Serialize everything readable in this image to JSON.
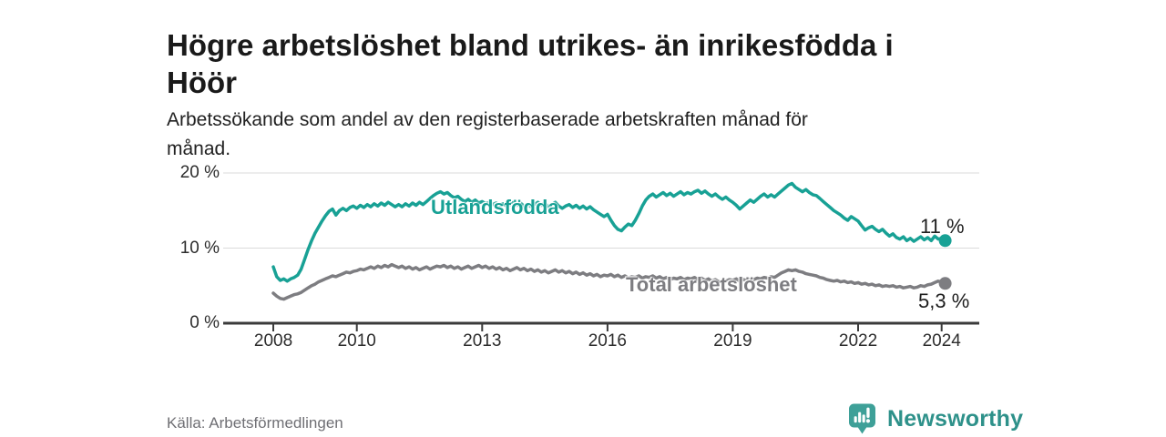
{
  "header": {
    "title_lines": [
      "Högre arbetslöshet bland utrikes- än inrikesfödda i",
      "Höör"
    ],
    "subtitle_lines": [
      "Arbetssökande som andel av den registerbaserade arbetskraften månad för",
      "månad."
    ]
  },
  "footer": {
    "source": "Källa: Arbetsförmedlingen",
    "brand_name": "Newsworthy",
    "brand_icon": "newsworthy-speech-bubble-bar-chart-icon"
  },
  "colors": {
    "accent_teal": "#18a195",
    "series_gray": "#7d7d81",
    "grid": "#dbdbdb",
    "axis": "#3b3b3b",
    "tick_text": "#2d2d2d",
    "title_text": "#1a1a1a",
    "muted_text": "#6f6f74",
    "brand_text": "#2e918a",
    "brand_icon_fill": "#3ea098"
  },
  "chart_data": {
    "type": "line",
    "title": "Högre arbetslöshet bland utrikes- än inrikesfödda i Höör",
    "subtitle": "Arbetssökande som andel av den registerbaserade arbetskraften månad för månad.",
    "xlabel": "",
    "ylabel": "",
    "x_unit": "year (monthly resolution)",
    "x_start": 2008.0,
    "x_step_years": 0.0833333,
    "xlim": [
      2006.8,
      2024.9
    ],
    "ylim": [
      0,
      20
    ],
    "grid": "horizontal",
    "legend_position": "inline-labels",
    "y_ticks": [
      {
        "value": 0,
        "label": "0 %"
      },
      {
        "value": 10,
        "label": "10 %"
      },
      {
        "value": 20,
        "label": "20 %"
      }
    ],
    "x_ticks": [
      {
        "value": 2008,
        "label": "2008"
      },
      {
        "value": 2010,
        "label": "2010"
      },
      {
        "value": 2013,
        "label": "2013"
      },
      {
        "value": 2016,
        "label": "2016"
      },
      {
        "value": 2019,
        "label": "2019"
      },
      {
        "value": 2022,
        "label": "2022"
      },
      {
        "value": 2024,
        "label": "2024"
      }
    ],
    "series": [
      {
        "name": "Utlandsfödda",
        "color": "#18a195",
        "end_label": "11 %",
        "end_value": 11.0,
        "values": [
          7.5,
          6.2,
          5.7,
          5.9,
          5.6,
          5.9,
          6.1,
          6.4,
          7.2,
          8.5,
          9.8,
          11.0,
          12.0,
          12.8,
          13.6,
          14.3,
          14.9,
          15.2,
          14.4,
          15.0,
          15.3,
          15.0,
          15.4,
          15.6,
          15.3,
          15.7,
          15.4,
          15.8,
          15.5,
          15.9,
          15.6,
          16.0,
          15.7,
          16.1,
          15.8,
          15.5,
          15.8,
          15.5,
          15.9,
          15.6,
          16.0,
          15.7,
          16.1,
          15.8,
          16.2,
          16.6,
          17.0,
          17.3,
          17.5,
          17.2,
          17.4,
          17.0,
          16.7,
          16.9,
          16.5,
          16.2,
          16.5,
          16.1,
          16.4,
          16.0,
          16.2,
          15.9,
          16.1,
          15.8,
          16.0,
          15.7,
          15.9,
          15.6,
          15.8,
          16.1,
          15.7,
          16.0,
          15.6,
          15.9,
          15.5,
          15.8,
          16.1,
          15.7,
          16.0,
          15.5,
          15.8,
          16.1,
          15.6,
          15.3,
          15.6,
          15.8,
          15.4,
          15.7,
          15.3,
          15.6,
          15.2,
          15.5,
          15.1,
          14.8,
          14.5,
          14.2,
          14.5,
          13.7,
          13.0,
          12.5,
          12.3,
          12.8,
          13.2,
          13.0,
          13.7,
          14.6,
          15.6,
          16.4,
          16.9,
          17.2,
          16.8,
          17.1,
          17.4,
          17.0,
          17.3,
          16.9,
          17.2,
          17.5,
          17.1,
          17.4,
          17.2,
          17.5,
          17.7,
          17.3,
          17.6,
          17.2,
          16.9,
          17.2,
          16.8,
          16.5,
          16.8,
          16.4,
          16.1,
          15.7,
          15.2,
          15.6,
          16.0,
          16.4,
          16.1,
          16.5,
          16.9,
          17.2,
          16.8,
          17.1,
          16.8,
          17.2,
          17.6,
          18.0,
          18.4,
          18.6,
          18.1,
          17.8,
          17.5,
          17.8,
          17.4,
          17.1,
          17.0,
          16.6,
          16.2,
          15.8,
          15.4,
          15.0,
          14.7,
          14.4,
          14.0,
          13.7,
          14.2,
          13.9,
          13.6,
          13.0,
          12.4,
          12.7,
          12.9,
          12.5,
          12.2,
          12.5,
          12.0,
          11.6,
          11.9,
          11.4,
          11.2,
          11.5,
          11.0,
          11.3,
          10.9,
          11.2,
          11.5,
          11.1,
          11.4,
          11.0,
          11.6,
          11.2,
          11.3,
          11.0
        ]
      },
      {
        "name": "Total arbetslöshet",
        "color": "#7d7d81",
        "end_label": "5,3 %",
        "end_value": 5.3,
        "values": [
          4.0,
          3.6,
          3.3,
          3.2,
          3.4,
          3.6,
          3.8,
          3.9,
          4.1,
          4.4,
          4.7,
          5.0,
          5.2,
          5.5,
          5.7,
          5.9,
          6.1,
          6.3,
          6.2,
          6.4,
          6.6,
          6.8,
          6.7,
          6.9,
          7.0,
          7.2,
          7.1,
          7.3,
          7.5,
          7.3,
          7.6,
          7.4,
          7.7,
          7.5,
          7.8,
          7.6,
          7.4,
          7.6,
          7.3,
          7.5,
          7.2,
          7.4,
          7.1,
          7.3,
          7.5,
          7.2,
          7.4,
          7.6,
          7.5,
          7.7,
          7.4,
          7.6,
          7.3,
          7.5,
          7.2,
          7.4,
          7.6,
          7.3,
          7.5,
          7.7,
          7.4,
          7.6,
          7.3,
          7.5,
          7.2,
          7.4,
          7.1,
          7.3,
          7.0,
          7.2,
          7.4,
          7.1,
          7.3,
          7.0,
          7.2,
          6.9,
          7.1,
          6.8,
          7.0,
          6.7,
          6.9,
          7.1,
          6.8,
          7.0,
          6.7,
          6.9,
          6.6,
          6.8,
          6.5,
          6.7,
          6.4,
          6.6,
          6.3,
          6.5,
          6.2,
          6.4,
          6.3,
          6.5,
          6.2,
          6.4,
          6.1,
          6.3,
          6.0,
          6.2,
          6.1,
          6.3,
          6.0,
          6.2,
          6.1,
          6.3,
          6.0,
          6.2,
          5.9,
          6.1,
          5.8,
          6.0,
          5.9,
          6.1,
          5.8,
          6.0,
          5.9,
          6.1,
          5.8,
          6.0,
          5.7,
          5.9,
          5.6,
          5.8,
          5.5,
          5.7,
          5.6,
          5.8,
          5.7,
          5.9,
          5.6,
          5.8,
          5.7,
          5.9,
          5.8,
          6.0,
          5.9,
          6.1,
          6.0,
          6.2,
          6.1,
          6.4,
          6.7,
          6.9,
          7.1,
          7.0,
          7.1,
          6.9,
          6.8,
          6.6,
          6.5,
          6.4,
          6.3,
          6.1,
          6.0,
          5.8,
          5.7,
          5.6,
          5.7,
          5.5,
          5.6,
          5.4,
          5.5,
          5.3,
          5.4,
          5.2,
          5.3,
          5.1,
          5.2,
          5.0,
          5.1,
          4.9,
          5.0,
          4.9,
          5.0,
          4.8,
          4.9,
          4.7,
          4.8,
          4.9,
          4.7,
          4.8,
          5.0,
          4.9,
          5.1,
          5.2,
          5.4,
          5.6,
          5.5,
          5.3
        ]
      }
    ]
  }
}
